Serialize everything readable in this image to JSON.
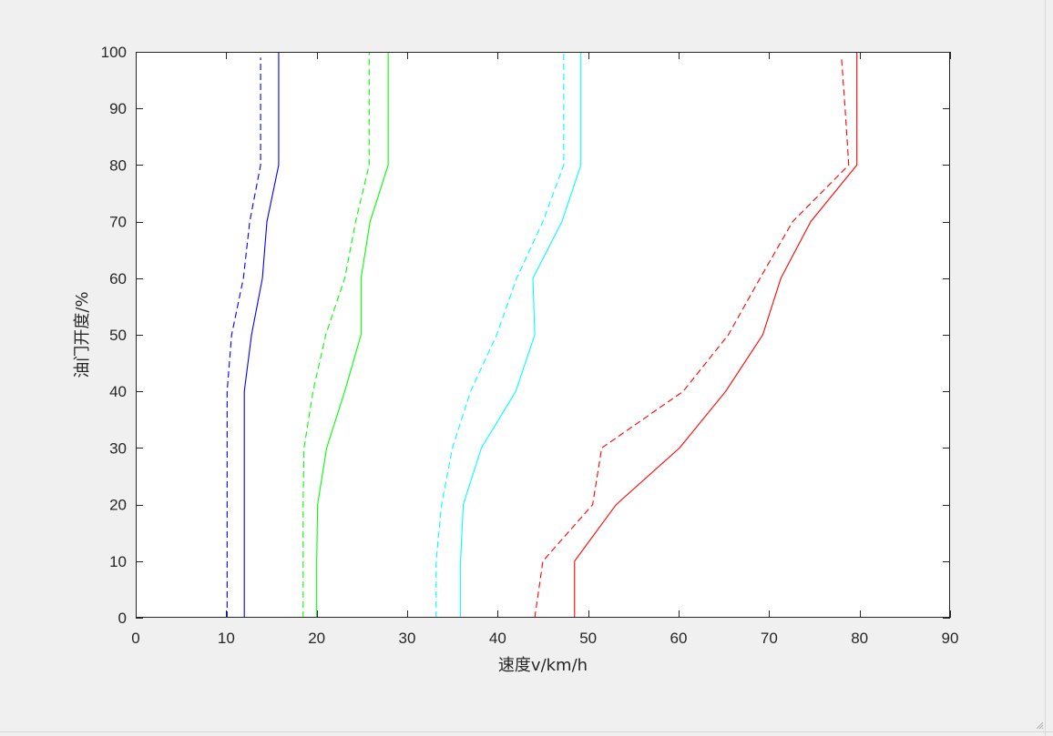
{
  "colors": {
    "background": "#f0f0f0",
    "axes_background": "#ffffff",
    "axis_line": "#262626"
  },
  "chart_data": {
    "type": "line",
    "title": "",
    "xlabel": "速度v/km/h",
    "ylabel": "油门开度/%",
    "xlim": [
      0,
      90
    ],
    "ylim": [
      0,
      100
    ],
    "xticks": [
      0,
      10,
      20,
      30,
      40,
      50,
      60,
      70,
      80,
      90
    ],
    "yticks": [
      0,
      10,
      20,
      30,
      40,
      50,
      60,
      70,
      80,
      90,
      100
    ],
    "grid": false,
    "legend": "none",
    "series": [
      {
        "color": "#0000ff",
        "style": "dashed",
        "points": [
          [
            10.1,
            0
          ],
          [
            10.1,
            10
          ],
          [
            10.1,
            20
          ],
          [
            10.1,
            30
          ],
          [
            10.1,
            40
          ],
          [
            10.6,
            50
          ],
          [
            11.9,
            60
          ],
          [
            12.6,
            70
          ],
          [
            13.8,
            80
          ],
          [
            13.8,
            90
          ],
          [
            13.8,
            99
          ]
        ]
      },
      {
        "color": "#0000ff",
        "style": "solid",
        "points": [
          [
            12.0,
            0
          ],
          [
            12.0,
            10
          ],
          [
            12.0,
            20
          ],
          [
            12.0,
            30
          ],
          [
            12.0,
            40
          ],
          [
            12.8,
            50
          ],
          [
            14.0,
            60
          ],
          [
            14.5,
            70
          ],
          [
            15.8,
            80
          ],
          [
            15.8,
            90
          ],
          [
            15.8,
            100
          ]
        ]
      },
      {
        "color": "#00ff00",
        "style": "dashed",
        "points": [
          [
            18.5,
            0
          ],
          [
            18.5,
            10
          ],
          [
            18.5,
            20
          ],
          [
            18.6,
            30
          ],
          [
            19.6,
            40
          ],
          [
            21.0,
            50
          ],
          [
            23.1,
            60
          ],
          [
            24.3,
            70
          ],
          [
            25.8,
            80
          ],
          [
            25.8,
            90
          ],
          [
            25.8,
            100
          ]
        ]
      },
      {
        "color": "#00ff00",
        "style": "solid",
        "points": [
          [
            20.0,
            0
          ],
          [
            20.0,
            10
          ],
          [
            20.1,
            20
          ],
          [
            21.1,
            30
          ],
          [
            23.1,
            40
          ],
          [
            24.9,
            50
          ],
          [
            24.9,
            60
          ],
          [
            25.9,
            70
          ],
          [
            27.9,
            80
          ],
          [
            27.9,
            90
          ],
          [
            27.9,
            100
          ]
        ]
      },
      {
        "color": "#00ffff",
        "style": "dashed",
        "points": [
          [
            33.2,
            0
          ],
          [
            33.2,
            10
          ],
          [
            33.8,
            20
          ],
          [
            35.0,
            30
          ],
          [
            37.0,
            40
          ],
          [
            39.9,
            50
          ],
          [
            42.1,
            60
          ],
          [
            45.0,
            70
          ],
          [
            47.3,
            80
          ],
          [
            47.3,
            90
          ],
          [
            47.3,
            100
          ]
        ]
      },
      {
        "color": "#00ffff",
        "style": "solid",
        "points": [
          [
            35.9,
            0
          ],
          [
            35.9,
            10
          ],
          [
            36.2,
            20
          ],
          [
            38.2,
            30
          ],
          [
            42.0,
            40
          ],
          [
            44.1,
            50
          ],
          [
            43.9,
            60
          ],
          [
            47.1,
            70
          ],
          [
            49.2,
            80
          ],
          [
            49.2,
            90
          ],
          [
            49.2,
            100
          ]
        ]
      },
      {
        "color": "#ff0000",
        "style": "dashed",
        "points": [
          [
            44.1,
            0
          ],
          [
            45.0,
            10
          ],
          [
            50.5,
            20
          ],
          [
            51.5,
            30
          ],
          [
            60.5,
            40
          ],
          [
            65.5,
            50
          ],
          [
            69.0,
            60
          ],
          [
            72.6,
            70
          ],
          [
            78.8,
            80
          ],
          [
            78.4,
            90
          ],
          [
            78.0,
            99
          ]
        ]
      },
      {
        "color": "#ff0000",
        "style": "solid",
        "points": [
          [
            48.5,
            0
          ],
          [
            48.5,
            10
          ],
          [
            53.1,
            20
          ],
          [
            60.1,
            30
          ],
          [
            65.2,
            40
          ],
          [
            69.3,
            50
          ],
          [
            71.3,
            60
          ],
          [
            74.6,
            70
          ],
          [
            79.7,
            80
          ],
          [
            79.7,
            90
          ],
          [
            79.7,
            100
          ]
        ]
      }
    ]
  }
}
